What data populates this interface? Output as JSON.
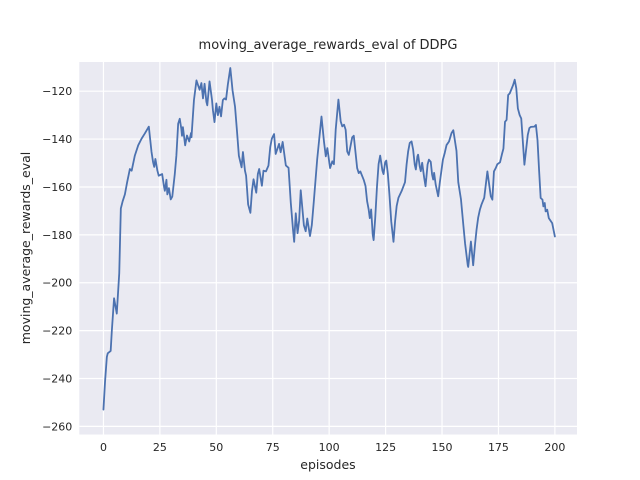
{
  "figure": {
    "background": "#ffffff"
  },
  "chart_data": {
    "type": "line",
    "title": "moving_average_rewards_eval of DDPG",
    "xlabel": "episodes",
    "ylabel": "moving_average_rewards_eval",
    "xlim": [
      -10.7,
      209.8
    ],
    "ylim": [
      -263.4,
      -107.8
    ],
    "grid": true,
    "legend_position": "none",
    "x_ticks": [
      0,
      25,
      50,
      75,
      100,
      125,
      150,
      175,
      200
    ],
    "x_tick_labels": [
      "0",
      "25",
      "50",
      "75",
      "100",
      "125",
      "150",
      "175",
      "200"
    ],
    "y_ticks": [
      -260,
      -240,
      -220,
      -200,
      -180,
      -160,
      -140,
      -120
    ],
    "y_tick_labels": [
      "−260",
      "−240",
      "−220",
      "−200",
      "−180",
      "−160",
      "−140",
      "−120"
    ],
    "colors": {
      "line": "#4c72b0",
      "axes_background": "#eaeaf2",
      "grid": "#ffffff",
      "text": "#262626"
    },
    "series": [
      {
        "name": "moving_average_rewards_eval",
        "points": [
          [
            0,
            -253
          ],
          [
            0.7,
            -241.4
          ],
          [
            1.5,
            -231
          ],
          [
            1.9,
            -229.5
          ],
          [
            3.2,
            -228.5
          ],
          [
            3.7,
            -220.3
          ],
          [
            4.7,
            -206.5
          ],
          [
            5.9,
            -212.9
          ],
          [
            7,
            -196
          ],
          [
            7.7,
            -169
          ],
          [
            8.5,
            -166
          ],
          [
            9.5,
            -163.1
          ],
          [
            10.5,
            -158
          ],
          [
            11.7,
            -152.5
          ],
          [
            12.5,
            -153.2
          ],
          [
            13.9,
            -146.9
          ],
          [
            15.4,
            -142.6
          ],
          [
            16.9,
            -139.8
          ],
          [
            18.3,
            -137.7
          ],
          [
            20.1,
            -134.8
          ],
          [
            21.3,
            -145.4
          ],
          [
            22,
            -149.7
          ],
          [
            22.5,
            -151.6
          ],
          [
            23,
            -148.3
          ],
          [
            23.9,
            -153.2
          ],
          [
            24.5,
            -155.3
          ],
          [
            26,
            -154.6
          ],
          [
            26.9,
            -160.2
          ],
          [
            27.2,
            -161.6
          ],
          [
            27.9,
            -157
          ],
          [
            28.3,
            -163.1
          ],
          [
            29,
            -160.5
          ],
          [
            29.8,
            -165.2
          ],
          [
            30.5,
            -164
          ],
          [
            31.6,
            -154.6
          ],
          [
            32.3,
            -147
          ],
          [
            33.1,
            -133.6
          ],
          [
            33.8,
            -131.5
          ],
          [
            34.5,
            -135.7
          ],
          [
            34.8,
            -138.6
          ],
          [
            35.2,
            -135
          ],
          [
            36.2,
            -142.6
          ],
          [
            37,
            -138.5
          ],
          [
            38,
            -141
          ],
          [
            38.8,
            -137.5
          ],
          [
            39,
            -139.2
          ],
          [
            40.1,
            -123.7
          ],
          [
            41.2,
            -115.5
          ],
          [
            42.6,
            -119.4
          ],
          [
            43.4,
            -116.6
          ],
          [
            44.1,
            -123
          ],
          [
            44.8,
            -116.9
          ],
          [
            45.6,
            -124.4
          ],
          [
            46,
            -125.9
          ],
          [
            47,
            -115.9
          ],
          [
            48.1,
            -123.7
          ],
          [
            48.5,
            -127.9
          ],
          [
            49.2,
            -132.9
          ],
          [
            50,
            -125.1
          ],
          [
            50.7,
            -130
          ],
          [
            51.4,
            -126.5
          ],
          [
            52.1,
            -130.5
          ],
          [
            52.9,
            -123.7
          ],
          [
            53.6,
            -123
          ],
          [
            54.3,
            -123.5
          ],
          [
            55.1,
            -117.3
          ],
          [
            56.2,
            -110.3
          ],
          [
            56.8,
            -115.9
          ],
          [
            57.2,
            -119.7
          ],
          [
            58.3,
            -126.5
          ],
          [
            59.2,
            -137.1
          ],
          [
            60,
            -147
          ],
          [
            61.2,
            -151.8
          ],
          [
            61.8,
            -145.4
          ],
          [
            62.7,
            -153.2
          ],
          [
            63.2,
            -155.3
          ],
          [
            64.1,
            -167.3
          ],
          [
            65.1,
            -170.8
          ],
          [
            65.8,
            -161.7
          ],
          [
            66.5,
            -156.8
          ],
          [
            67.7,
            -162.4
          ],
          [
            68.4,
            -154.6
          ],
          [
            69,
            -152.5
          ],
          [
            70.2,
            -159.5
          ],
          [
            70.9,
            -153.2
          ],
          [
            72,
            -153.5
          ],
          [
            73.1,
            -151.1
          ],
          [
            73.9,
            -143.3
          ],
          [
            74.6,
            -139.8
          ],
          [
            75.6,
            -137.9
          ],
          [
            76.3,
            -146.2
          ],
          [
            77.8,
            -142
          ],
          [
            78.5,
            -145.5
          ],
          [
            79.4,
            -141.2
          ],
          [
            80.8,
            -151
          ],
          [
            82,
            -152
          ],
          [
            83,
            -166.6
          ],
          [
            84,
            -178
          ],
          [
            84.5,
            -182.9
          ],
          [
            85.2,
            -171
          ],
          [
            86,
            -179.3
          ],
          [
            86.7,
            -174
          ],
          [
            87.4,
            -161.4
          ],
          [
            88.8,
            -176
          ],
          [
            89.6,
            -178.5
          ],
          [
            90.3,
            -173.2
          ],
          [
            91.5,
            -180.5
          ],
          [
            92.3,
            -176
          ],
          [
            93.2,
            -166
          ],
          [
            94.7,
            -148.4
          ],
          [
            95.6,
            -140
          ],
          [
            96.6,
            -130.6
          ],
          [
            97.7,
            -141
          ],
          [
            98.5,
            -147.2
          ],
          [
            99.2,
            -143.8
          ],
          [
            100.4,
            -152.1
          ],
          [
            101.4,
            -149.3
          ],
          [
            102.1,
            -150.5
          ],
          [
            102.9,
            -136
          ],
          [
            104.1,
            -123.5
          ],
          [
            105.1,
            -132.6
          ],
          [
            105.8,
            -134.7
          ],
          [
            106.6,
            -134
          ],
          [
            107.3,
            -136.1
          ],
          [
            108,
            -145.2
          ],
          [
            108.7,
            -146.6
          ],
          [
            110.2,
            -139.3
          ],
          [
            110.9,
            -138.6
          ],
          [
            112.4,
            -152.1
          ],
          [
            113.1,
            -154.2
          ],
          [
            113.8,
            -153.5
          ],
          [
            115.3,
            -157
          ],
          [
            116.1,
            -159.6
          ],
          [
            116.8,
            -165.9
          ],
          [
            117.5,
            -169.4
          ],
          [
            118,
            -173
          ],
          [
            118.6,
            -169.4
          ],
          [
            119.3,
            -180
          ],
          [
            119.7,
            -182.2
          ],
          [
            120.4,
            -173
          ],
          [
            121.2,
            -159.6
          ],
          [
            121.9,
            -150.4
          ],
          [
            122.6,
            -146.9
          ],
          [
            123.6,
            -153.2
          ],
          [
            124.1,
            -154.6
          ],
          [
            124.8,
            -149.7
          ],
          [
            125.3,
            -149
          ],
          [
            126,
            -154.6
          ],
          [
            126.7,
            -163.1
          ],
          [
            127.5,
            -174.4
          ],
          [
            128.5,
            -182.9
          ],
          [
            129.2,
            -174.4
          ],
          [
            129.9,
            -168
          ],
          [
            130.7,
            -164.5
          ],
          [
            131.4,
            -163.1
          ],
          [
            132.1,
            -161.7
          ],
          [
            133.6,
            -158
          ],
          [
            134.3,
            -150.6
          ],
          [
            135,
            -145.1
          ],
          [
            135.7,
            -141.6
          ],
          [
            136.5,
            -141
          ],
          [
            137.2,
            -144.4
          ],
          [
            137.9,
            -150.6
          ],
          [
            138.4,
            -152.7
          ],
          [
            139.1,
            -147.2
          ],
          [
            139.4,
            -146.5
          ],
          [
            140.1,
            -151.3
          ],
          [
            140.6,
            -153.4
          ],
          [
            141.2,
            -149.9
          ],
          [
            142.1,
            -156.2
          ],
          [
            142.7,
            -159.7
          ],
          [
            143.6,
            -150.6
          ],
          [
            144.2,
            -148.6
          ],
          [
            145,
            -149.5
          ],
          [
            145.6,
            -154.8
          ],
          [
            146.1,
            -156.9
          ],
          [
            146.5,
            -154.1
          ],
          [
            147.2,
            -159
          ],
          [
            148.3,
            -163.9
          ],
          [
            149,
            -158.3
          ],
          [
            149.7,
            -153.4
          ],
          [
            150.4,
            -148.6
          ],
          [
            151.2,
            -145.8
          ],
          [
            152,
            -142.5
          ],
          [
            153.1,
            -141
          ],
          [
            154.2,
            -137.5
          ],
          [
            155,
            -136.3
          ],
          [
            156.4,
            -144.9
          ],
          [
            157.2,
            -158
          ],
          [
            158.4,
            -165.2
          ],
          [
            159.5,
            -176.5
          ],
          [
            160.2,
            -183.5
          ],
          [
            161.4,
            -192.7
          ],
          [
            161.6,
            -193.4
          ],
          [
            162.8,
            -182.8
          ],
          [
            163.8,
            -192.7
          ],
          [
            164.6,
            -184.2
          ],
          [
            165.3,
            -177.8
          ],
          [
            166,
            -172.9
          ],
          [
            166.8,
            -169.4
          ],
          [
            167.5,
            -167.3
          ],
          [
            168.7,
            -164.5
          ],
          [
            170.1,
            -153.5
          ],
          [
            171.6,
            -163.9
          ],
          [
            172.3,
            -165.3
          ],
          [
            173,
            -153.5
          ],
          [
            173.8,
            -152.1
          ],
          [
            174.5,
            -150.5
          ],
          [
            175.7,
            -149.7
          ],
          [
            176.5,
            -146.5
          ],
          [
            177.2,
            -144
          ],
          [
            177.9,
            -132.8
          ],
          [
            178.6,
            -132
          ],
          [
            179.3,
            -121.6
          ],
          [
            180,
            -120.9
          ],
          [
            181.5,
            -117.4
          ],
          [
            182.2,
            -115.2
          ],
          [
            182.9,
            -118.8
          ],
          [
            183.6,
            -127.2
          ],
          [
            184.4,
            -130
          ],
          [
            185.1,
            -131.4
          ],
          [
            185.8,
            -141
          ],
          [
            186.5,
            -150.7
          ],
          [
            188,
            -138.2
          ],
          [
            188.7,
            -135.4
          ],
          [
            189.4,
            -134.9
          ],
          [
            190.9,
            -134.8
          ],
          [
            191.6,
            -134.1
          ],
          [
            192.3,
            -140.4
          ],
          [
            193,
            -153
          ],
          [
            193.7,
            -164.6
          ],
          [
            194.5,
            -165.3
          ],
          [
            194.9,
            -168.1
          ],
          [
            195.5,
            -166.7
          ],
          [
            195.9,
            -170.2
          ],
          [
            196.6,
            -169.5
          ],
          [
            197.3,
            -173
          ],
          [
            198.8,
            -175.1
          ],
          [
            200,
            -180.7
          ]
        ]
      }
    ]
  }
}
